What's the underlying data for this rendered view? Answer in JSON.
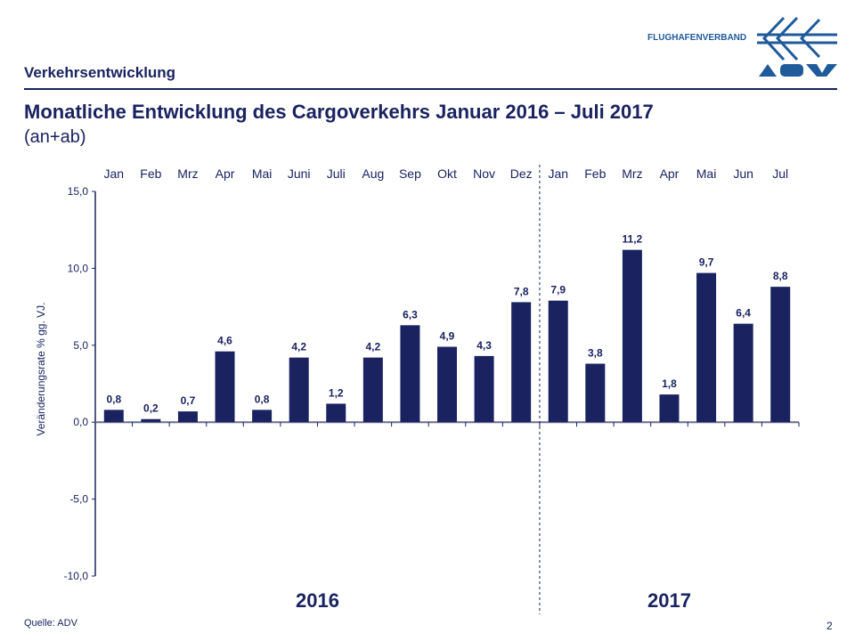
{
  "header": {
    "section": "Verkehrsentwicklung",
    "title": "Monatliche Entwicklung des Cargoverkehrs  Januar 2016 – Juli 2017",
    "subtitle": "(an+ab)",
    "logo_text": "FLUGHAFENVERBAND",
    "logo_brand": "ADV"
  },
  "footer": {
    "source": "Quelle: ADV",
    "page": "2"
  },
  "colors": {
    "bar": "#1a2360",
    "text": "#1a2360",
    "logo": "#1f5a9a"
  },
  "chart_data": {
    "type": "bar",
    "title": "Monatliche Entwicklung des Cargoverkehrs  Januar 2016 – Juli 2017",
    "ylabel": "Veränderungsrate % gg. VJ.",
    "xlabel": "",
    "ylim": [
      -10,
      15
    ],
    "yticks": [
      "15,0",
      "10,0",
      "5,0",
      "0,0",
      "-5,0",
      "-10,0"
    ],
    "ytick_values": [
      15,
      10,
      5,
      0,
      -5,
      -10
    ],
    "categories": [
      "Jan",
      "Feb",
      "Mrz",
      "Apr",
      "Mai",
      "Juni",
      "Juli",
      "Aug",
      "Sep",
      "Okt",
      "Nov",
      "Dez",
      "Jan",
      "Feb",
      "Mrz",
      "Apr",
      "Mai",
      "Jun",
      "Jul"
    ],
    "values": [
      0.8,
      0.2,
      0.7,
      4.6,
      0.8,
      4.2,
      1.2,
      4.2,
      6.3,
      4.9,
      4.3,
      7.8,
      7.9,
      3.8,
      11.2,
      1.8,
      9.7,
      6.4,
      8.8
    ],
    "labels": [
      "0,8",
      "0,2",
      "0,7",
      "4,6",
      "0,8",
      "4,2",
      "1,2",
      "4,2",
      "6,3",
      "4,9",
      "4,3",
      "7,8",
      "7,9",
      "3,8",
      "11,2",
      "1,8",
      "9,7",
      "6,4",
      "8,8"
    ],
    "groups": [
      {
        "name": "2016",
        "count": 12
      },
      {
        "name": "2017",
        "count": 7
      }
    ],
    "grid": false,
    "legend": "none"
  }
}
